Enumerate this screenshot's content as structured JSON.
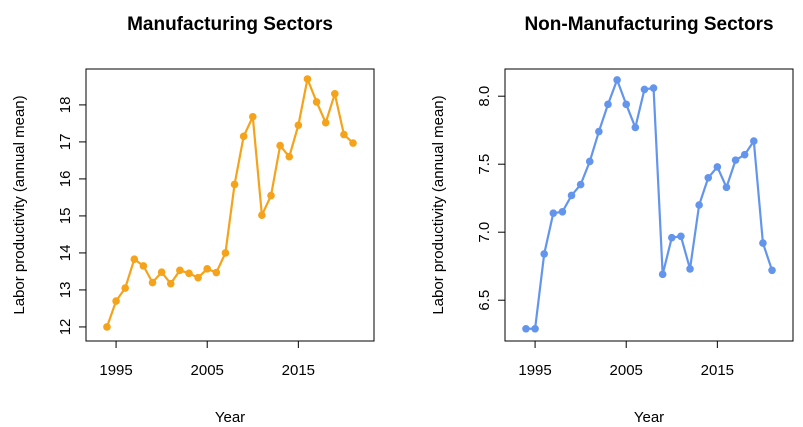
{
  "chart_data": [
    {
      "type": "line",
      "title": "Manufacturing Sectors",
      "x_label": "Year",
      "y_label": "Labor productivity (annual mean)",
      "x": [
        1994,
        1995,
        1996,
        1997,
        1998,
        1999,
        2000,
        2001,
        2002,
        2003,
        2004,
        2005,
        2006,
        2007,
        2008,
        2009,
        2010,
        2011,
        2012,
        2013,
        2014,
        2015,
        2016,
        2017,
        2018,
        2019,
        2020,
        2021
      ],
      "series": [
        {
          "color": "#f5a31a",
          "values": [
            12.0,
            12.7,
            13.05,
            13.83,
            13.65,
            13.2,
            13.48,
            13.17,
            13.53,
            13.45,
            13.33,
            13.57,
            13.47,
            14.0,
            15.85,
            17.15,
            17.68,
            15.02,
            15.55,
            16.9,
            16.6,
            17.45,
            18.7,
            18.08,
            17.52,
            18.3,
            17.2,
            16.97
          ]
        }
      ],
      "xlim": [
        1991.7,
        2023.3
      ],
      "xticks": [
        1995,
        2005,
        2015
      ],
      "ylim": [
        11.62,
        18.97
      ],
      "yticks": [
        12,
        13,
        14,
        15,
        16,
        17,
        18
      ]
    },
    {
      "type": "line",
      "title": "Non-Manufacturing Sectors",
      "x_label": "Year",
      "y_label": "Labor productivity (annual mean)",
      "x": [
        1994,
        1995,
        1996,
        1997,
        1998,
        1999,
        2000,
        2001,
        2002,
        2003,
        2004,
        2005,
        2006,
        2007,
        2008,
        2009,
        2010,
        2011,
        2012,
        2013,
        2014,
        2015,
        2016,
        2017,
        2018,
        2019,
        2020,
        2021
      ],
      "series": [
        {
          "color": "#6495ed",
          "values": [
            6.29,
            6.29,
            6.84,
            7.14,
            7.15,
            7.27,
            7.35,
            7.52,
            7.74,
            7.94,
            8.12,
            7.94,
            7.77,
            8.05,
            8.06,
            6.69,
            6.96,
            6.97,
            6.73,
            7.2,
            7.4,
            7.48,
            7.33,
            7.53,
            7.57,
            7.67,
            6.92,
            6.72
          ]
        }
      ],
      "xlim": [
        1991.7,
        2023.3
      ],
      "xticks": [
        1995,
        2005,
        2015
      ],
      "ylim": [
        6.2,
        8.2
      ],
      "yticks": [
        6.5,
        {
          "value": 7,
          "label": "7.0"
        },
        7.5,
        {
          "value": 8,
          "label": "8.0"
        }
      ]
    }
  ]
}
